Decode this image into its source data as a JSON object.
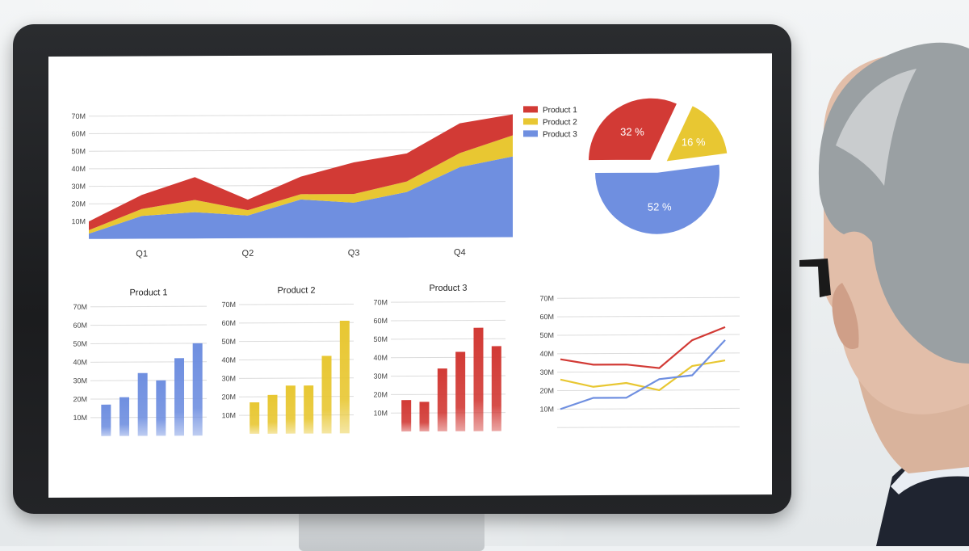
{
  "colors": {
    "product1": "#d23a35",
    "product2": "#e8c732",
    "product3": "#6f8fe0",
    "grid": "#dcdcdc"
  },
  "chart_data": [
    {
      "type": "area",
      "stacked": true,
      "title": "",
      "categories": [
        "",
        "Q1",
        "",
        "Q2",
        "",
        "Q3",
        "",
        "Q4",
        ""
      ],
      "x_tick_labels": [
        "Q1",
        "Q2",
        "Q3",
        "Q4"
      ],
      "y_tick_labels": [
        "10M",
        "20M",
        "30M",
        "40M",
        "50M",
        "60M",
        "70M"
      ],
      "ylim": [
        0,
        70
      ],
      "series": [
        {
          "name": "Product 3",
          "values": [
            3,
            13,
            15,
            13,
            22,
            20,
            26,
            40,
            46
          ]
        },
        {
          "name": "Product 2",
          "values": [
            2,
            4,
            7,
            3,
            3,
            5,
            6,
            8,
            12
          ]
        },
        {
          "name": "Product 1",
          "values": [
            5,
            8,
            13,
            6,
            10,
            18,
            16,
            17,
            12
          ]
        }
      ],
      "legend": {
        "placement": "right",
        "entries": [
          "Product 1",
          "Product 2",
          "Product 3"
        ]
      }
    },
    {
      "type": "pie",
      "slices": [
        {
          "label": "32 %",
          "value": 32
        },
        {
          "label": "16 %",
          "value": 16
        },
        {
          "label": "52 %",
          "value": 52
        }
      ]
    },
    {
      "type": "bar",
      "title": "Product 1",
      "y_tick_labels": [
        "10M",
        "20M",
        "30M",
        "40M",
        "50M",
        "60M",
        "70M"
      ],
      "ylim": [
        0,
        70
      ],
      "values": [
        17,
        21,
        34,
        30,
        42,
        50
      ]
    },
    {
      "type": "bar",
      "title": "Product 2",
      "y_tick_labels": [
        "10M",
        "20M",
        "30M",
        "40M",
        "50M",
        "60M",
        "70M"
      ],
      "ylim": [
        0,
        70
      ],
      "values": [
        17,
        21,
        26,
        26,
        42,
        61
      ]
    },
    {
      "type": "bar",
      "title": "Product 3",
      "y_tick_labels": [
        "10M",
        "20M",
        "30M",
        "40M",
        "50M",
        "60M",
        "70M"
      ],
      "ylim": [
        0,
        70
      ],
      "values": [
        17,
        16,
        34,
        43,
        56,
        46
      ]
    },
    {
      "type": "line",
      "title": "",
      "y_tick_labels": [
        "10M",
        "20M",
        "30M",
        "40M",
        "50M",
        "60M",
        "70M"
      ],
      "ylim": [
        0,
        70
      ],
      "x": [
        0,
        1,
        2,
        3,
        4,
        5
      ],
      "series": [
        {
          "values": [
            37,
            34,
            34,
            32,
            47,
            54
          ]
        },
        {
          "values": [
            26,
            22,
            24,
            20,
            33,
            36
          ]
        },
        {
          "values": [
            10,
            16,
            16,
            26,
            28,
            47
          ]
        }
      ]
    }
  ]
}
